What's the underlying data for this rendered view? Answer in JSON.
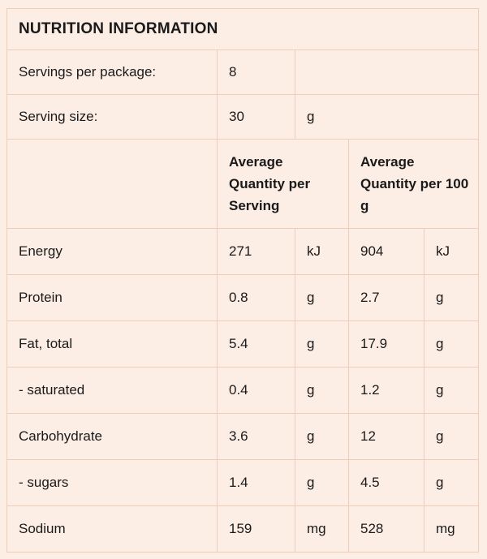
{
  "title": "NUTRITION INFORMATION",
  "servings_per_package": {
    "label": "Servings per package:",
    "value": "8"
  },
  "serving_size": {
    "label": "Serving size:",
    "value": "30",
    "unit": "g"
  },
  "columns": {
    "per_serving": "Average Quantity per Serving",
    "per_100g": "Average Quantity per 100 g"
  },
  "rows": [
    {
      "name": "Energy",
      "serving": "271",
      "serving_unit": "kJ",
      "per100": "904",
      "per100_unit": "kJ"
    },
    {
      "name": "Protein",
      "serving": "0.8",
      "serving_unit": "g",
      "per100": "2.7",
      "per100_unit": "g"
    },
    {
      "name": "Fat, total",
      "serving": "5.4",
      "serving_unit": "g",
      "per100": "17.9",
      "per100_unit": "g"
    },
    {
      "name": "- saturated",
      "serving": "0.4",
      "serving_unit": "g",
      "per100": "1.2",
      "per100_unit": "g"
    },
    {
      "name": "Carbohydrate",
      "serving": "3.6",
      "serving_unit": "g",
      "per100": "12",
      "per100_unit": "g"
    },
    {
      "name": "- sugars",
      "serving": "1.4",
      "serving_unit": "g",
      "per100": "4.5",
      "per100_unit": "g"
    },
    {
      "name": "Sodium",
      "serving": "159",
      "serving_unit": "mg",
      "per100": "528",
      "per100_unit": "mg"
    }
  ]
}
